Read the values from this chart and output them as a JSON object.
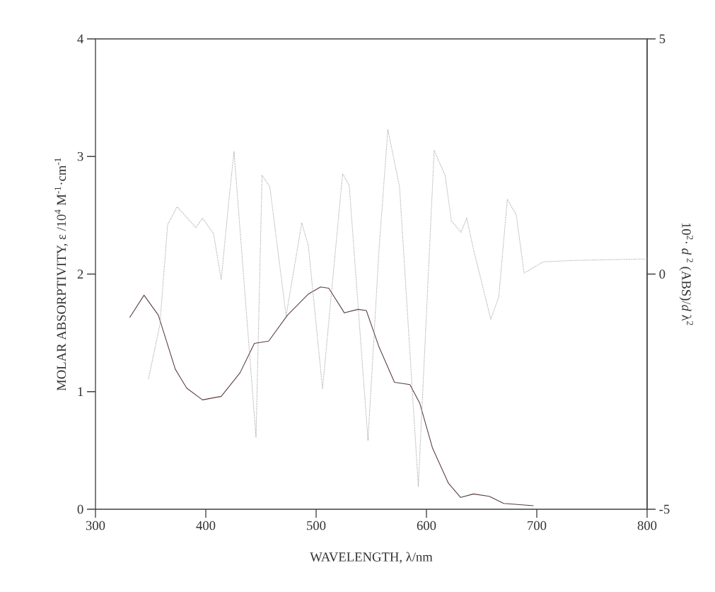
{
  "chart_data": {
    "type": "line",
    "xlabel": "WAVELENGTH, λ/nm",
    "ylabel": "MOLAR ABSORPTIVITY, ε /10$^{4}$ M$^{-1}$·cm$^{-1}$",
    "y2label": "10$^{2}$· *d* $^{2}$ (ABS)/*d* λ$^{2}$",
    "xlim": [
      300,
      800
    ],
    "xticks": [
      300,
      400,
      500,
      600,
      700,
      800
    ],
    "ylim": [
      0,
      4
    ],
    "yticks": [
      0,
      1,
      2,
      3,
      4
    ],
    "y2lim": [
      -5,
      5
    ],
    "y2ticks": [
      -5,
      0,
      5
    ],
    "marker": "none",
    "series": [
      {
        "color": "#5a3c3c",
        "line_style": "solid",
        "x": [
          331,
          344,
          357,
          372.4,
          382.7,
          397,
          414,
          431,
          444,
          457,
          474,
          493,
          504,
          511.5,
          525.6,
          538,
          545.5,
          557,
          571,
          585,
          594,
          605.5,
          620,
          631,
          642.7,
          657,
          670,
          697
        ],
        "values": [
          1.63,
          1.82,
          1.65,
          1.19,
          1.03,
          0.93,
          0.96,
          1.16,
          1.41,
          1.43,
          1.65,
          1.83,
          1.89,
          1.88,
          1.67,
          1.7,
          1.69,
          1.38,
          1.08,
          1.06,
          0.9,
          0.52,
          0.22,
          0.1,
          0.13,
          0.11,
          0.05,
          0.03
        ]
      },
      {
        "color": "#9a9a9a",
        "line_style": "dotted",
        "axis": "y2",
        "x": [
          348,
          358.3,
          365.4,
          374,
          391,
          397,
          407,
          414,
          421,
          425.6,
          445.5,
          451,
          458,
          472.8,
          487,
          493,
          505.8,
          524,
          530,
          547,
          557,
          565,
          575.6,
          592.6,
          607,
          617,
          622.6,
          631.4,
          636.5,
          642.7,
          658.3,
          665.5,
          673.3,
          681.4,
          688.5,
          705.8,
          734,
          794,
          800
        ],
        "values": [
          -2.23,
          -1.09,
          1.05,
          1.43,
          0.99,
          1.19,
          0.86,
          -0.12,
          1.59,
          2.6,
          -3.47,
          2.1,
          1.86,
          -0.89,
          1.09,
          0.59,
          -2.44,
          2.13,
          1.89,
          -3.54,
          0.52,
          3.07,
          1.86,
          -4.51,
          2.63,
          2.09,
          1.13,
          0.89,
          1.19,
          0.52,
          -0.96,
          -0.49,
          1.59,
          1.26,
          0.02,
          0.26,
          0.29,
          0.32,
          0.32
        ]
      }
    ]
  }
}
